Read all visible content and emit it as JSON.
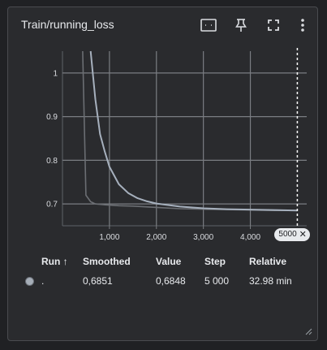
{
  "card": {
    "title": "Train/running_loss",
    "toolbar": [
      {
        "name": "fit-domain-icon"
      },
      {
        "name": "pin-icon"
      },
      {
        "name": "fullscreen-icon"
      },
      {
        "name": "more-vert-icon"
      }
    ]
  },
  "chart_data": {
    "type": "line",
    "xlabel": "",
    "ylabel": "",
    "xlim": [
      0,
      5200
    ],
    "ylim": [
      0.65,
      1.05
    ],
    "x_ticks": [
      1000,
      2000,
      3000,
      4000
    ],
    "x_tick_labels": [
      "1,000",
      "2,000",
      "3,000",
      "4,000"
    ],
    "y_ticks": [
      0.7,
      0.8,
      0.9,
      1
    ],
    "y_tick_labels": [
      "0.7",
      "0.8",
      "0.9",
      "1"
    ],
    "grid": true,
    "hover_step": 5000,
    "hover_step_label": "5000",
    "series": [
      {
        "role": "raw",
        "color": "#6b6e73",
        "x": [
          430,
          500,
          600,
          700,
          900,
          1200,
          1500,
          2000,
          2500,
          3000,
          3500,
          4000,
          4500,
          5000
        ],
        "y": [
          1.05,
          0.72,
          0.705,
          0.7,
          0.698,
          0.696,
          0.695,
          0.692,
          0.689,
          0.688,
          0.687,
          0.686,
          0.685,
          0.685
        ]
      },
      {
        "role": "smoothed",
        "color": "#a6b0bd",
        "x": [
          600,
          700,
          800,
          900,
          1000,
          1200,
          1400,
          1600,
          1800,
          2000,
          2500,
          3000,
          3500,
          4000,
          4500,
          5000
        ],
        "y": [
          1.05,
          0.94,
          0.86,
          0.82,
          0.785,
          0.745,
          0.725,
          0.713,
          0.706,
          0.701,
          0.694,
          0.69,
          0.688,
          0.687,
          0.686,
          0.685
        ]
      }
    ]
  },
  "table": {
    "headers": {
      "run": "Run ↑",
      "smoothed": "Smoothed",
      "value": "Value",
      "step": "Step",
      "relative": "Relative"
    },
    "rows": [
      {
        "run": ".",
        "smoothed": "0,6851",
        "value": "0,6848",
        "step": "5 000",
        "relative": "32.98 min",
        "color": "#a6aeb8"
      }
    ]
  }
}
